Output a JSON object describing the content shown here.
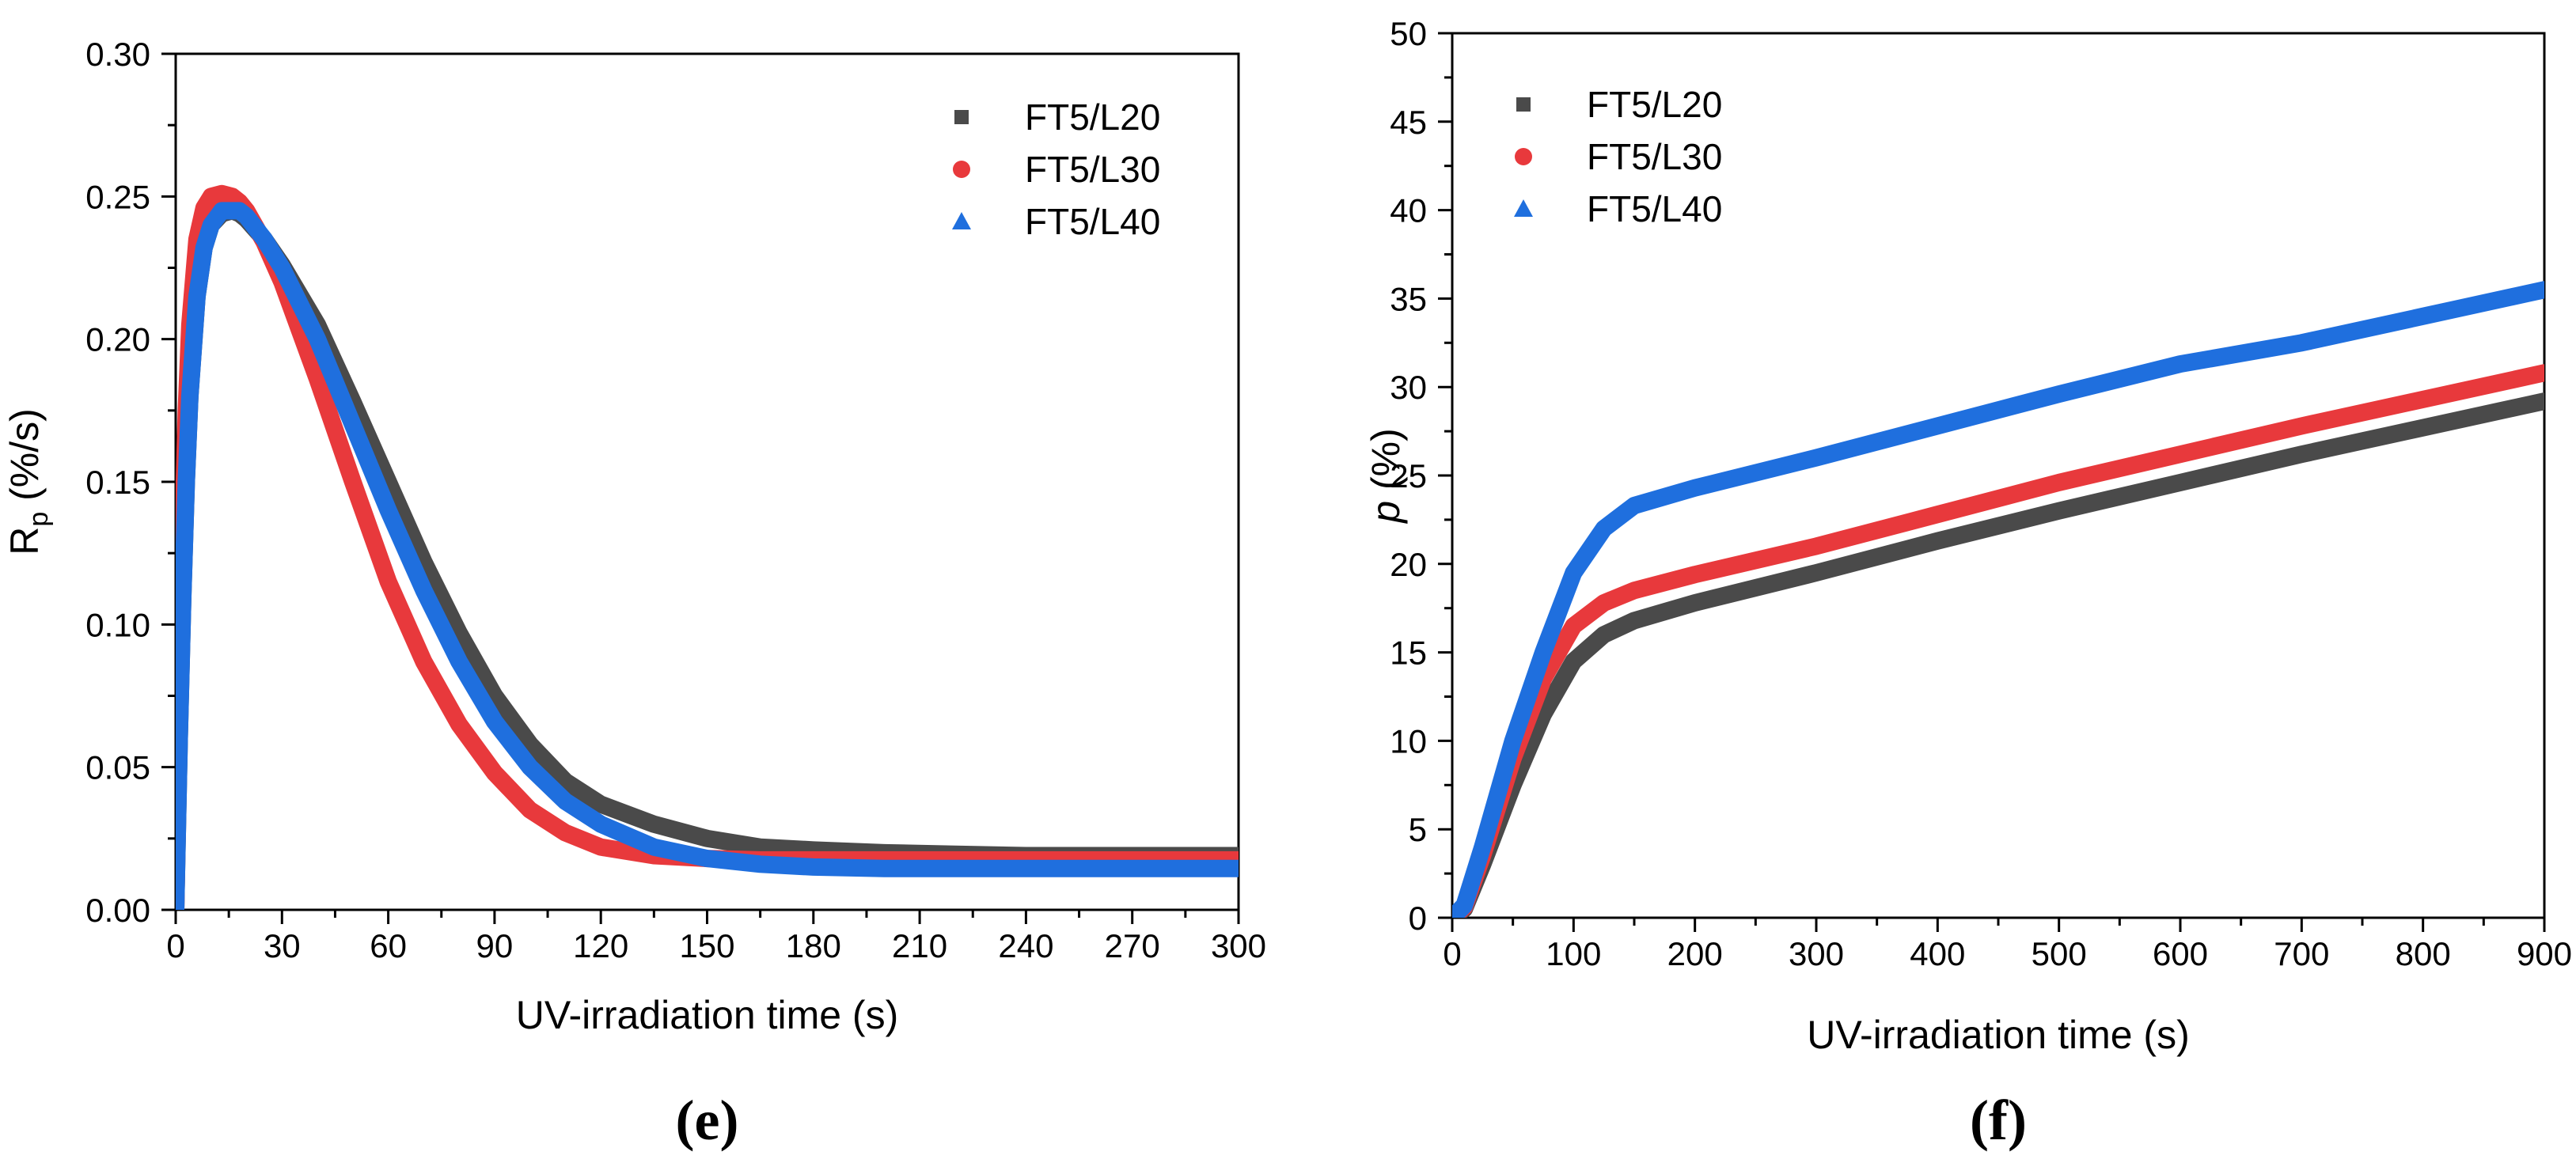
{
  "chart_data": [
    {
      "type": "line",
      "panel_label": "(e)",
      "title": "",
      "xlabel": "UV-irradiation time (s)",
      "ylabel": {
        "main": "R",
        "sub": "p",
        "unit": " (%/s)"
      },
      "xlim": [
        0,
        300
      ],
      "ylim": [
        0,
        0.3
      ],
      "xticks": [
        0,
        30,
        60,
        90,
        120,
        150,
        180,
        210,
        240,
        270,
        300
      ],
      "xtick_labels": [
        "0",
        "30",
        "60",
        "90",
        "120",
        "150",
        "180",
        "210",
        "240",
        "270",
        "300"
      ],
      "yticks": [
        0,
        0.05,
        0.1,
        0.15,
        0.2,
        0.25,
        0.3
      ],
      "ytick_labels": [
        "0.00",
        "0.05",
        "0.10",
        "0.15",
        "0.20",
        "0.25",
        "0.30"
      ],
      "grid": false,
      "legend": "top-right",
      "series": [
        {
          "name": "FT5/L20",
          "marker": "square",
          "color": "#4a4a4a",
          "x": [
            0,
            1,
            2,
            3,
            4,
            6,
            8,
            10,
            13,
            16,
            18,
            20,
            25,
            30,
            40,
            50,
            60,
            70,
            80,
            90,
            100,
            110,
            120,
            135,
            150,
            165,
            180,
            200,
            220,
            240,
            270,
            300
          ],
          "y": [
            0.0,
            0.06,
            0.11,
            0.15,
            0.18,
            0.215,
            0.232,
            0.24,
            0.244,
            0.245,
            0.244,
            0.242,
            0.235,
            0.226,
            0.205,
            0.178,
            0.15,
            0.122,
            0.097,
            0.075,
            0.058,
            0.045,
            0.037,
            0.03,
            0.025,
            0.022,
            0.021,
            0.02,
            0.0195,
            0.019,
            0.019,
            0.019
          ]
        },
        {
          "name": "FT5/L30",
          "marker": "circle",
          "color": "#e8393c",
          "x": [
            0,
            1,
            2,
            3,
            4,
            6,
            8,
            10,
            13,
            16,
            18,
            20,
            25,
            30,
            40,
            50,
            60,
            70,
            80,
            90,
            100,
            110,
            120,
            135,
            150,
            165,
            180,
            200,
            220,
            240,
            270,
            300
          ],
          "y": [
            0.0,
            0.07,
            0.13,
            0.175,
            0.205,
            0.235,
            0.246,
            0.25,
            0.251,
            0.25,
            0.248,
            0.245,
            0.234,
            0.22,
            0.186,
            0.15,
            0.115,
            0.087,
            0.065,
            0.048,
            0.035,
            0.027,
            0.022,
            0.019,
            0.018,
            0.0175,
            0.0175,
            0.0175,
            0.0175,
            0.0175,
            0.0175,
            0.0175
          ]
        },
        {
          "name": "FT5/L40",
          "marker": "triangle",
          "color": "#1f6fde",
          "x": [
            0,
            1,
            2,
            3,
            4,
            6,
            8,
            10,
            13,
            16,
            18,
            20,
            25,
            30,
            40,
            50,
            60,
            70,
            80,
            90,
            100,
            110,
            120,
            135,
            150,
            165,
            180,
            200,
            220,
            240,
            270,
            300
          ],
          "y": [
            0.0,
            0.06,
            0.11,
            0.15,
            0.18,
            0.215,
            0.232,
            0.24,
            0.245,
            0.245,
            0.245,
            0.243,
            0.235,
            0.225,
            0.2,
            0.17,
            0.14,
            0.112,
            0.087,
            0.066,
            0.05,
            0.038,
            0.03,
            0.022,
            0.018,
            0.016,
            0.015,
            0.0145,
            0.0145,
            0.0145,
            0.0145,
            0.0145
          ]
        }
      ]
    },
    {
      "type": "line",
      "panel_label": "(f)",
      "title": "",
      "xlabel": "UV-irradiation time (s)",
      "ylabel": {
        "main": "p",
        "unit": " (%)"
      },
      "xlim": [
        0,
        900
      ],
      "ylim": [
        0,
        50
      ],
      "xticks": [
        0,
        100,
        200,
        300,
        400,
        500,
        600,
        700,
        800,
        900
      ],
      "xtick_labels": [
        "0",
        "100",
        "200",
        "300",
        "400",
        "500",
        "600",
        "700",
        "800",
        "900"
      ],
      "yticks": [
        0,
        5,
        10,
        15,
        20,
        25,
        30,
        35,
        40,
        45,
        50
      ],
      "ytick_labels": [
        "0",
        "5",
        "10",
        "15",
        "20",
        "25",
        "30",
        "35",
        "40",
        "45",
        "50"
      ],
      "grid": false,
      "legend": "top-left",
      "series": [
        {
          "name": "FT5/L20",
          "marker": "square",
          "color": "#4a4a4a",
          "x": [
            0,
            10,
            25,
            50,
            75,
            100,
            125,
            150,
            200,
            300,
            400,
            500,
            600,
            700,
            800,
            900
          ],
          "y": [
            0,
            0.5,
            3,
            7.5,
            11.5,
            14.5,
            16,
            16.8,
            17.8,
            19.5,
            21.3,
            23,
            24.6,
            26.2,
            27.7,
            29.2
          ]
        },
        {
          "name": "FT5/L30",
          "marker": "circle",
          "color": "#e8393c",
          "x": [
            0,
            10,
            25,
            50,
            75,
            100,
            125,
            150,
            200,
            300,
            400,
            500,
            600,
            700,
            800,
            900
          ],
          "y": [
            0,
            0.6,
            3.5,
            9,
            13.5,
            16.5,
            17.8,
            18.5,
            19.4,
            21,
            22.8,
            24.6,
            26.2,
            27.8,
            29.3,
            30.8
          ]
        },
        {
          "name": "FT5/L40",
          "marker": "triangle",
          "color": "#1f6fde",
          "x": [
            0,
            10,
            25,
            50,
            75,
            100,
            125,
            150,
            200,
            300,
            400,
            500,
            600,
            700,
            800,
            900
          ],
          "y": [
            0,
            0.7,
            4,
            10,
            15,
            19.5,
            22,
            23.3,
            24.3,
            26,
            27.8,
            29.6,
            31.3,
            32.5,
            34,
            35.5
          ]
        }
      ]
    }
  ]
}
